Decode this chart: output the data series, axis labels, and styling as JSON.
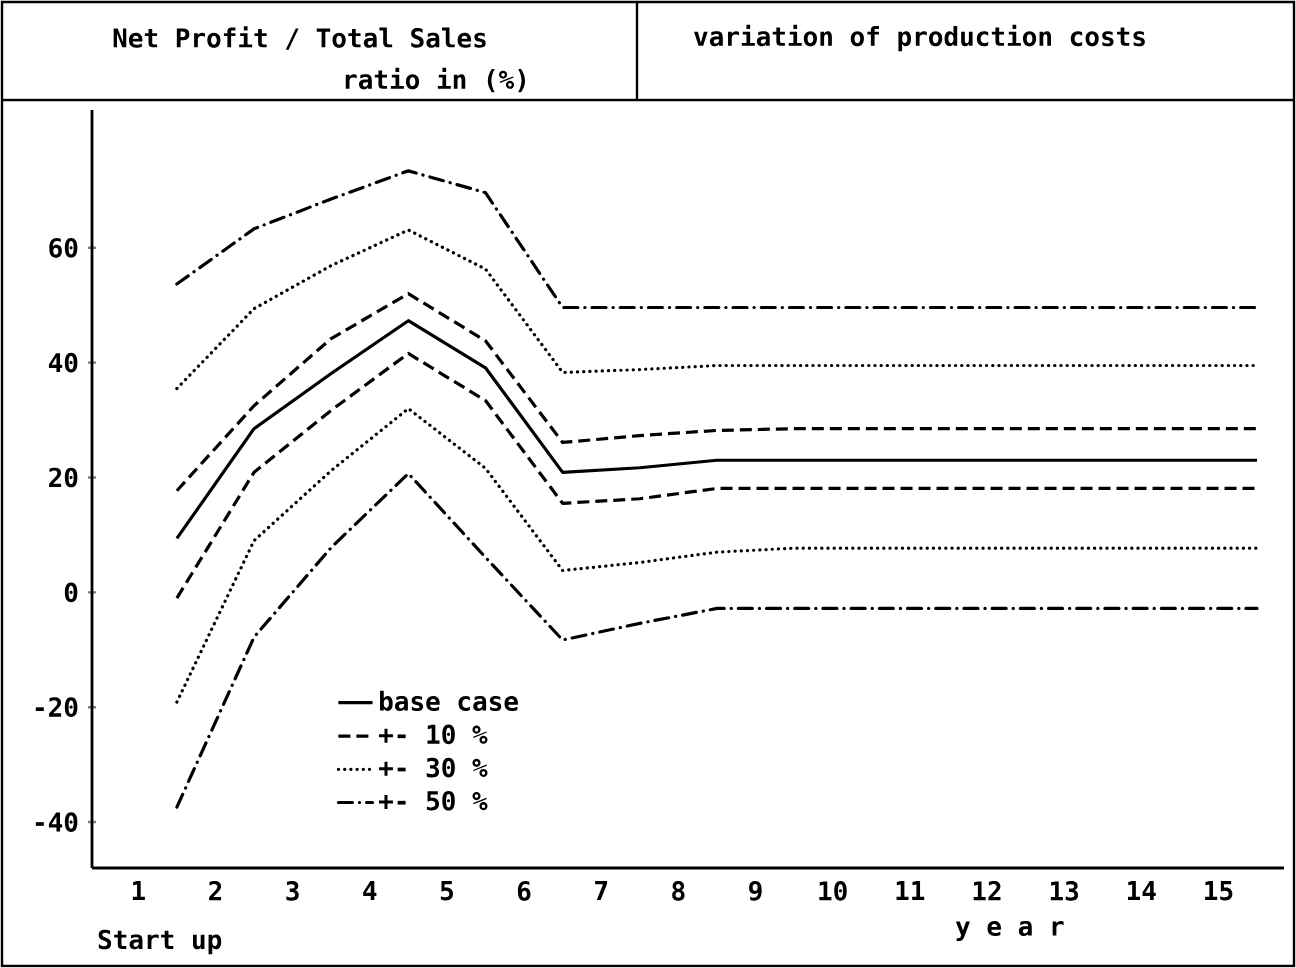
{
  "chart_data": {
    "type": "line",
    "title": "Net Profit  /  Total Sales",
    "ylabel": "ratio in (%)",
    "subtitle": "variation of production costs",
    "xlabel": "y e a r",
    "annotations": [
      "Start up"
    ],
    "x": [
      1.5,
      2.5,
      3.5,
      4.5,
      5.5,
      6.5,
      7.5,
      8.5,
      9.5,
      10.5,
      11.5,
      12.5,
      13.5,
      14.5,
      15.5
    ],
    "series": [
      {
        "name": "base case",
        "color": "#000000",
        "line_style": "solid",
        "values": [
          9.4,
          28.5,
          38.1,
          47.3,
          39.1,
          20.9,
          21.7,
          23,
          23,
          23,
          23,
          23,
          23,
          23,
          23
        ]
      },
      {
        "name": "+- 10 %",
        "color": "#000000",
        "line_style": "dashed",
        "values": [
          17.7,
          32.5,
          44.2,
          52,
          43.8,
          26.1,
          27.3,
          28.2,
          28.5,
          28.5,
          28.5,
          28.5,
          28.5,
          28.5,
          28.5
        ]
      },
      {
        "color": "#000000",
        "line_style": "dashed",
        "values": [
          -1,
          20.9,
          31.7,
          41.6,
          33.4,
          15.5,
          16.3,
          18.1,
          18.1,
          18.1,
          18.1,
          18.1,
          18.1,
          18.1,
          18.1
        ]
      },
      {
        "name": "+- 30 %",
        "color": "#000000",
        "line_style": "dotted",
        "values": [
          35.5,
          49.4,
          56.9,
          63.1,
          56.3,
          38.3,
          38.8,
          39.5,
          39.5,
          39.5,
          39.5,
          39.5,
          39.5,
          39.5,
          39.5
        ]
      },
      {
        "color": "#000000",
        "line_style": "dotted",
        "values": [
          -19.1,
          9,
          21.2,
          32,
          21.6,
          3.8,
          5.2,
          7,
          7.7,
          7.7,
          7.7,
          7.7,
          7.7,
          7.7,
          7.7
        ]
      },
      {
        "name": "+- 50 %",
        "color": "#000000",
        "line_style": "dashdot",
        "values": [
          53.7,
          63.3,
          68.5,
          73.4,
          69.6,
          49.6,
          49.6,
          49.6,
          49.6,
          49.6,
          49.6,
          49.6,
          49.6,
          49.6,
          49.6
        ]
      },
      {
        "color": "#000000",
        "line_style": "dashdot",
        "values": [
          -37.4,
          -7.8,
          7.8,
          20.7,
          6.1,
          -8.3,
          -5.4,
          -2.8,
          -2.8,
          -2.8,
          -2.8,
          -2.8,
          -2.8,
          -2.8,
          -2.8
        ]
      }
    ],
    "xlim": [
      0.4,
      15.85
    ],
    "ylim": [
      -48,
      84
    ],
    "xticks": [
      1,
      2,
      3,
      4,
      5,
      6,
      7,
      8,
      9,
      10,
      11,
      12,
      13,
      14,
      15
    ],
    "yticks": [
      -40,
      -20,
      0,
      20,
      40,
      60
    ],
    "legend": "bottom left"
  }
}
